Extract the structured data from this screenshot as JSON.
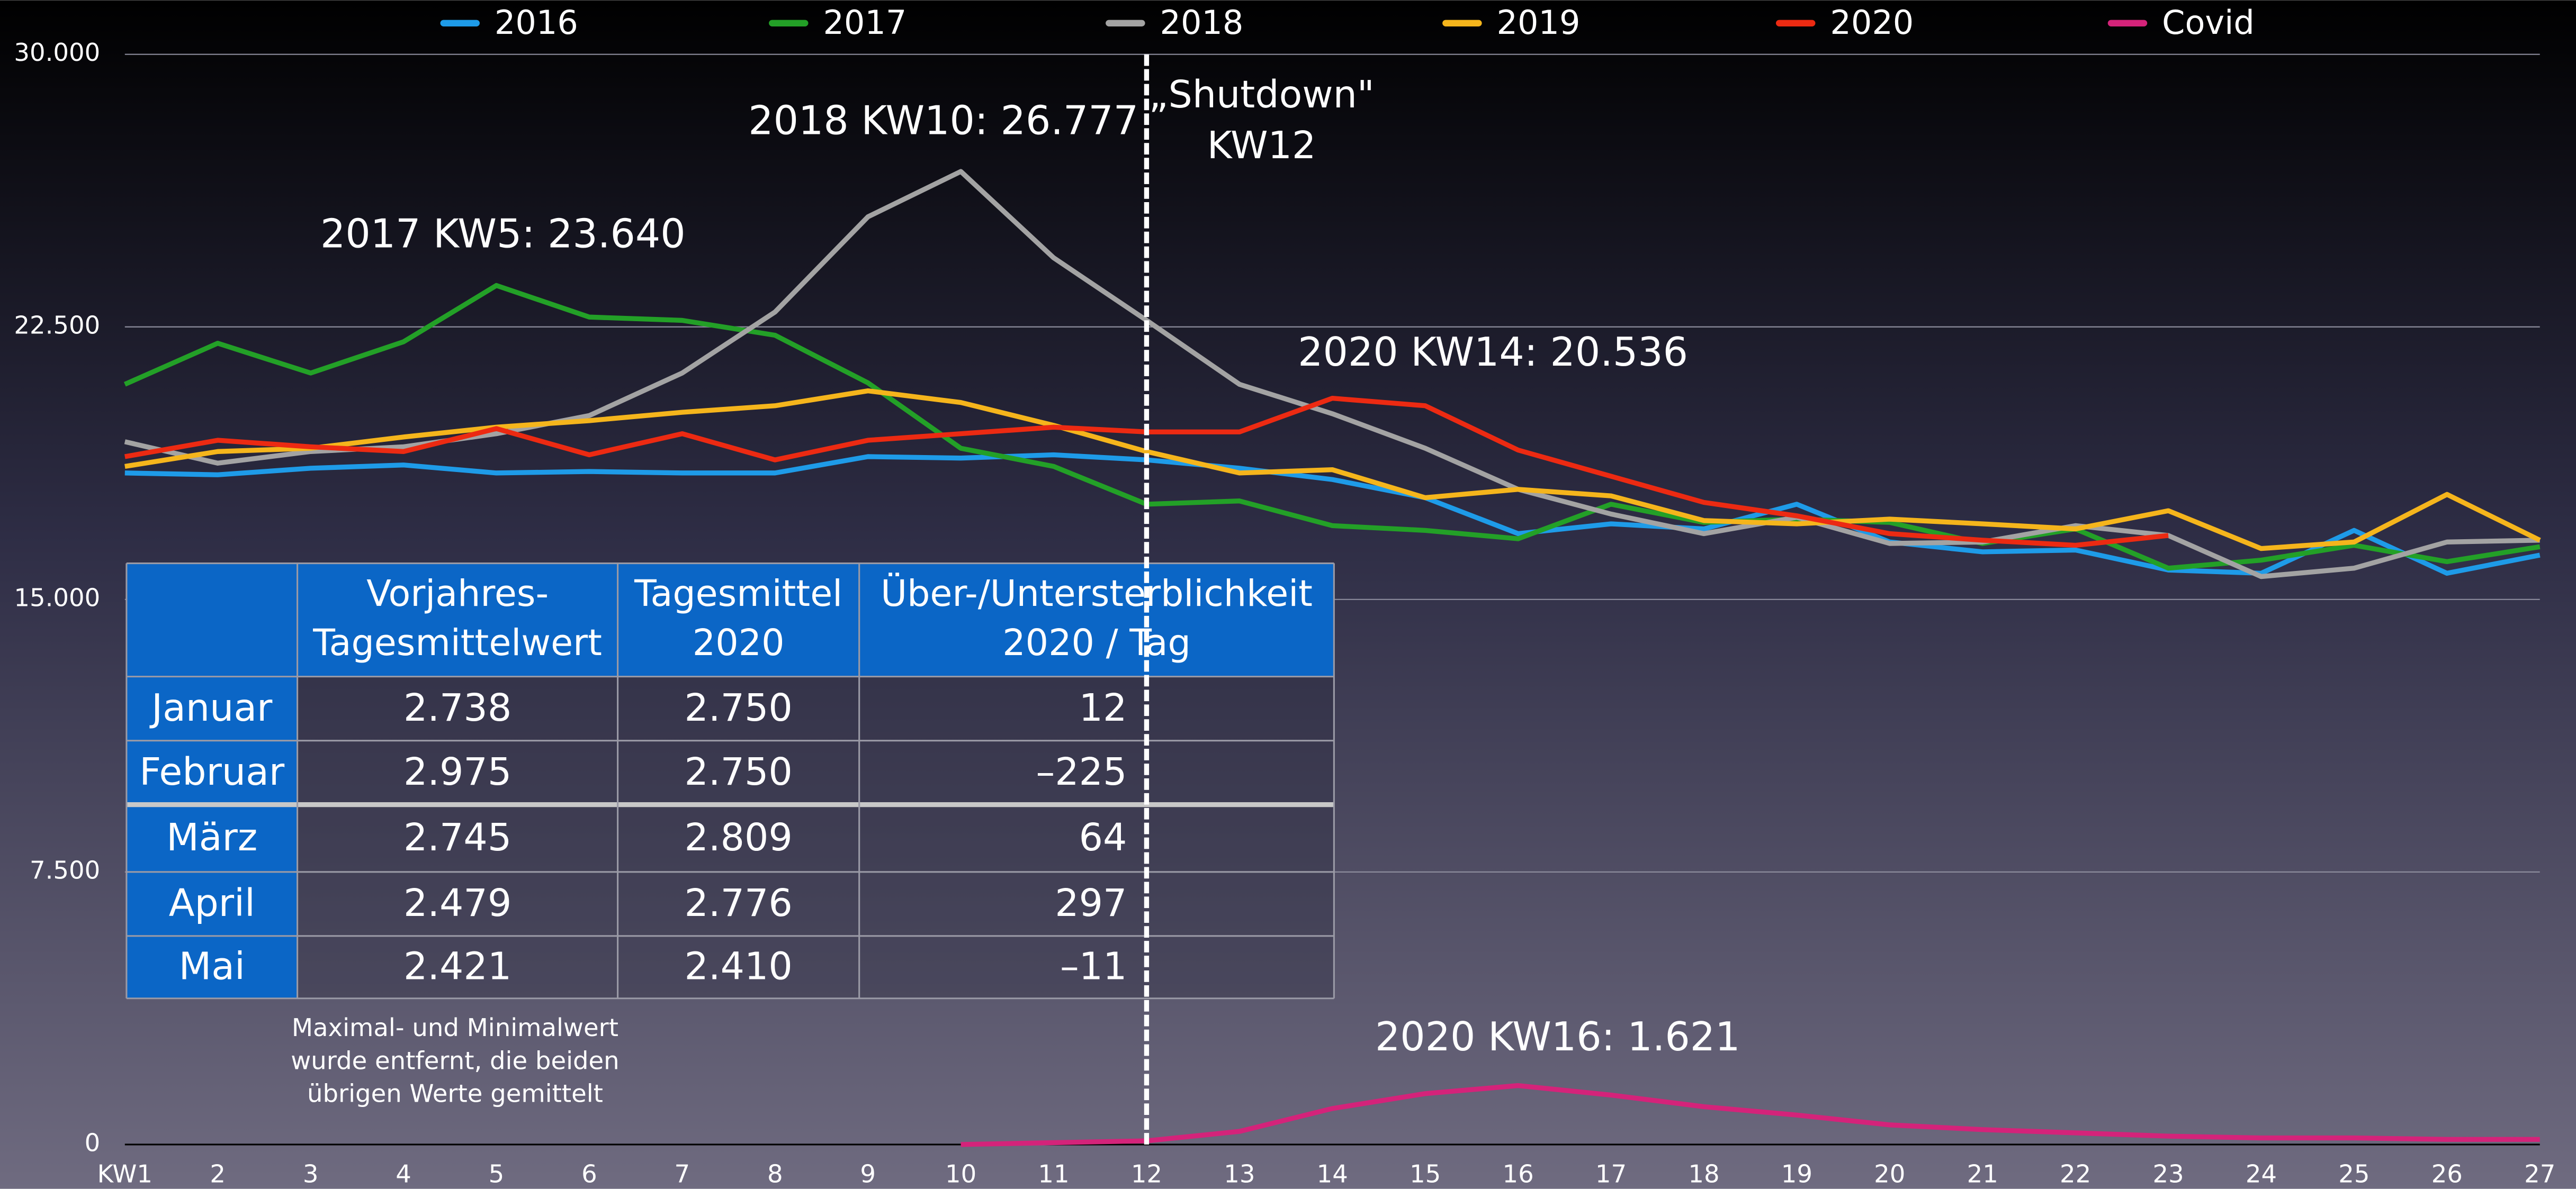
{
  "chart_data": {
    "type": "line",
    "categories": [
      "KW1",
      "2",
      "3",
      "4",
      "5",
      "6",
      "7",
      "8",
      "9",
      "10",
      "11",
      "12",
      "13",
      "14",
      "15",
      "16",
      "17",
      "18",
      "19",
      "20",
      "21",
      "22",
      "23",
      "24",
      "25",
      "26",
      "27"
    ],
    "ylim": [
      0,
      30000
    ],
    "yticks": [
      0,
      {
        "value": 7500,
        "label": "7.500"
      },
      {
        "value": 15000,
        "label": "15.000"
      },
      {
        "value": 22500,
        "label": "22.500"
      },
      {
        "value": 30000,
        "label": "30.000"
      }
    ],
    "grid": true,
    "legend": "top",
    "series": [
      {
        "name": "2016",
        "color": "#1e9be8",
        "values": [
          18480,
          18430,
          18610,
          18700,
          18480,
          18520,
          18480,
          18480,
          18930,
          18890,
          18980,
          18840,
          18610,
          18300,
          17800,
          16810,
          17080,
          16940,
          17620,
          16580,
          16310,
          16360,
          15810,
          15720,
          16900,
          15720,
          16220
        ]
      },
      {
        "name": "2017",
        "color": "#23a027",
        "values": [
          20920,
          22050,
          21230,
          22090,
          23640,
          22770,
          22680,
          22270,
          20960,
          19160,
          18660,
          17620,
          17710,
          17030,
          16900,
          16670,
          17620,
          17120,
          17210,
          17120,
          16540,
          16940,
          15860,
          16080,
          16490,
          16040,
          16450
        ]
      },
      {
        "name": "2018",
        "color": "#a3a3a3",
        "values": [
          19340,
          18750,
          19070,
          19200,
          19560,
          20060,
          21230,
          22910,
          25530,
          26777,
          24400,
          22680,
          20920,
          20110,
          19160,
          18030,
          17350,
          16810,
          17260,
          16540,
          16580,
          17030,
          16760,
          15630,
          15860,
          16580,
          16630
        ]
      },
      {
        "name": "2019",
        "color": "#f5b51c",
        "values": [
          18660,
          19070,
          19160,
          19470,
          19740,
          19920,
          20150,
          20330,
          20740,
          20420,
          19790,
          19070,
          18480,
          18570,
          17800,
          18030,
          17850,
          17170,
          17080,
          17210,
          17080,
          16940,
          17440,
          16400,
          16580,
          17890,
          16630
        ]
      },
      {
        "name": "2020",
        "color": "#ec2a12",
        "values": [
          18930,
          19380,
          19200,
          19070,
          19700,
          18980,
          19560,
          18840,
          19380,
          19560,
          19740,
          19610,
          19610,
          20536,
          20330,
          19110,
          18390,
          17670,
          17300,
          16810,
          16630,
          16490,
          16760,
          null,
          null,
          null,
          null
        ]
      },
      {
        "name": "Covid",
        "color": "#d4237a",
        "values": [
          null,
          null,
          null,
          null,
          null,
          null,
          null,
          null,
          null,
          0,
          50,
          100,
          360,
          990,
          1400,
          1621,
          1360,
          1040,
          810,
          540,
          410,
          320,
          230,
          180,
          180,
          140,
          140
        ]
      }
    ],
    "annotations": [
      {
        "text": [
          "2018 KW10: 26.777"
        ]
      },
      {
        "text": [
          "2017 KW5: 23.640"
        ]
      },
      {
        "text": [
          "2020 KW14: 20.536"
        ]
      },
      {
        "text": [
          "2020 KW16: 1.621"
        ]
      },
      {
        "text": [
          "Maximal- und Minimalwert",
          "wurde entfernt, die beiden",
          "übrigen Werte gemittelt"
        ]
      }
    ],
    "marker": {
      "at": "12",
      "label": [
        "„Shutdown\"",
        "KW12"
      ]
    },
    "table": {
      "header": [
        [
          "Vorjahres-",
          "Tagesmittelwert"
        ],
        [
          "Tagesmittel",
          "2020"
        ],
        [
          "Über-/Untersterblichkeit",
          "2020 / Tag"
        ]
      ],
      "rows": [
        [
          "Januar",
          "2.738",
          "2.750",
          "12"
        ],
        [
          "Februar",
          "2.975",
          "2.750",
          "–225"
        ],
        [
          "März",
          "2.745",
          "2.809",
          "64"
        ],
        [
          "April",
          "2.479",
          "2.776",
          "297"
        ],
        [
          "Mai",
          "2.421",
          "2.410",
          "–11"
        ]
      ]
    }
  }
}
